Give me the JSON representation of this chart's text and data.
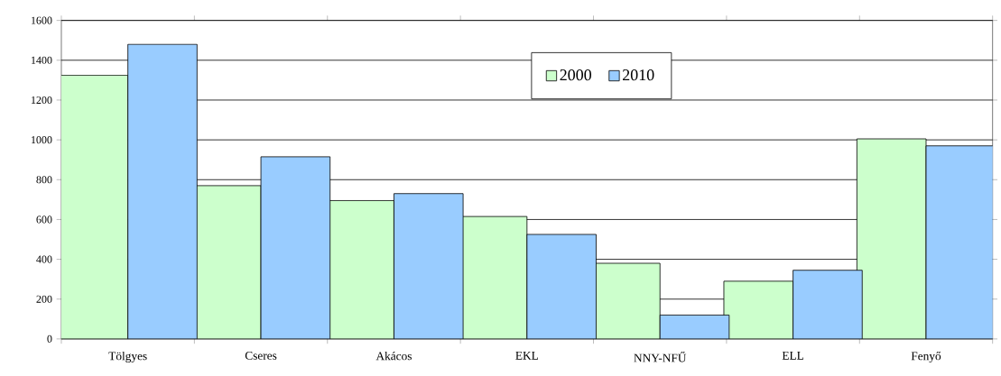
{
  "chart_data": {
    "type": "bar",
    "categories": [
      "Tölgyes",
      "Cseres",
      "Akácos",
      "EKL",
      "NNY-NFŰ",
      "ELL",
      "Fenyő"
    ],
    "series": [
      {
        "name": "2000",
        "color": "#ccffcc",
        "values": [
          1325,
          770,
          695,
          615,
          380,
          290,
          1005
        ]
      },
      {
        "name": "2010",
        "color": "#99ccff",
        "values": [
          1480,
          915,
          730,
          525,
          120,
          345,
          970
        ]
      }
    ],
    "ylim": [
      0,
      1600
    ],
    "yticks": [
      0,
      200,
      400,
      600,
      800,
      1000,
      1200,
      1400,
      1600
    ],
    "grid": "y",
    "legend": "top"
  }
}
